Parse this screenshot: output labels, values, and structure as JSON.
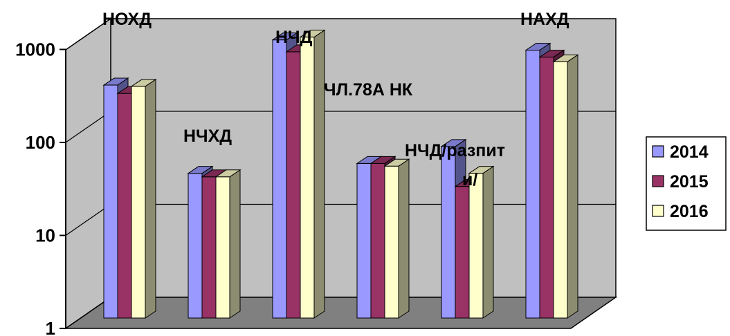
{
  "chart_data": {
    "type": "bar",
    "scale": "log",
    "ylim": [
      1,
      1000
    ],
    "yticks": [
      "1",
      "10",
      "100",
      "1000"
    ],
    "grid": true,
    "legend_position": "right",
    "categories": [
      "НОХД",
      "НЧХД",
      "НЧД",
      "ЧЛ.78А НК",
      "НЧД/разпит и/",
      "НАХД"
    ],
    "series": [
      {
        "name": "2014",
        "color": "#9999ff",
        "values": [
          320,
          36,
          980,
          46,
          70,
          760
        ]
      },
      {
        "name": "2015",
        "color": "#993366",
        "values": [
          260,
          33,
          730,
          46,
          26,
          640
        ]
      },
      {
        "name": "2016",
        "color": "#ffffcc",
        "values": [
          310,
          33,
          1050,
          43,
          36,
          570
        ]
      }
    ]
  }
}
